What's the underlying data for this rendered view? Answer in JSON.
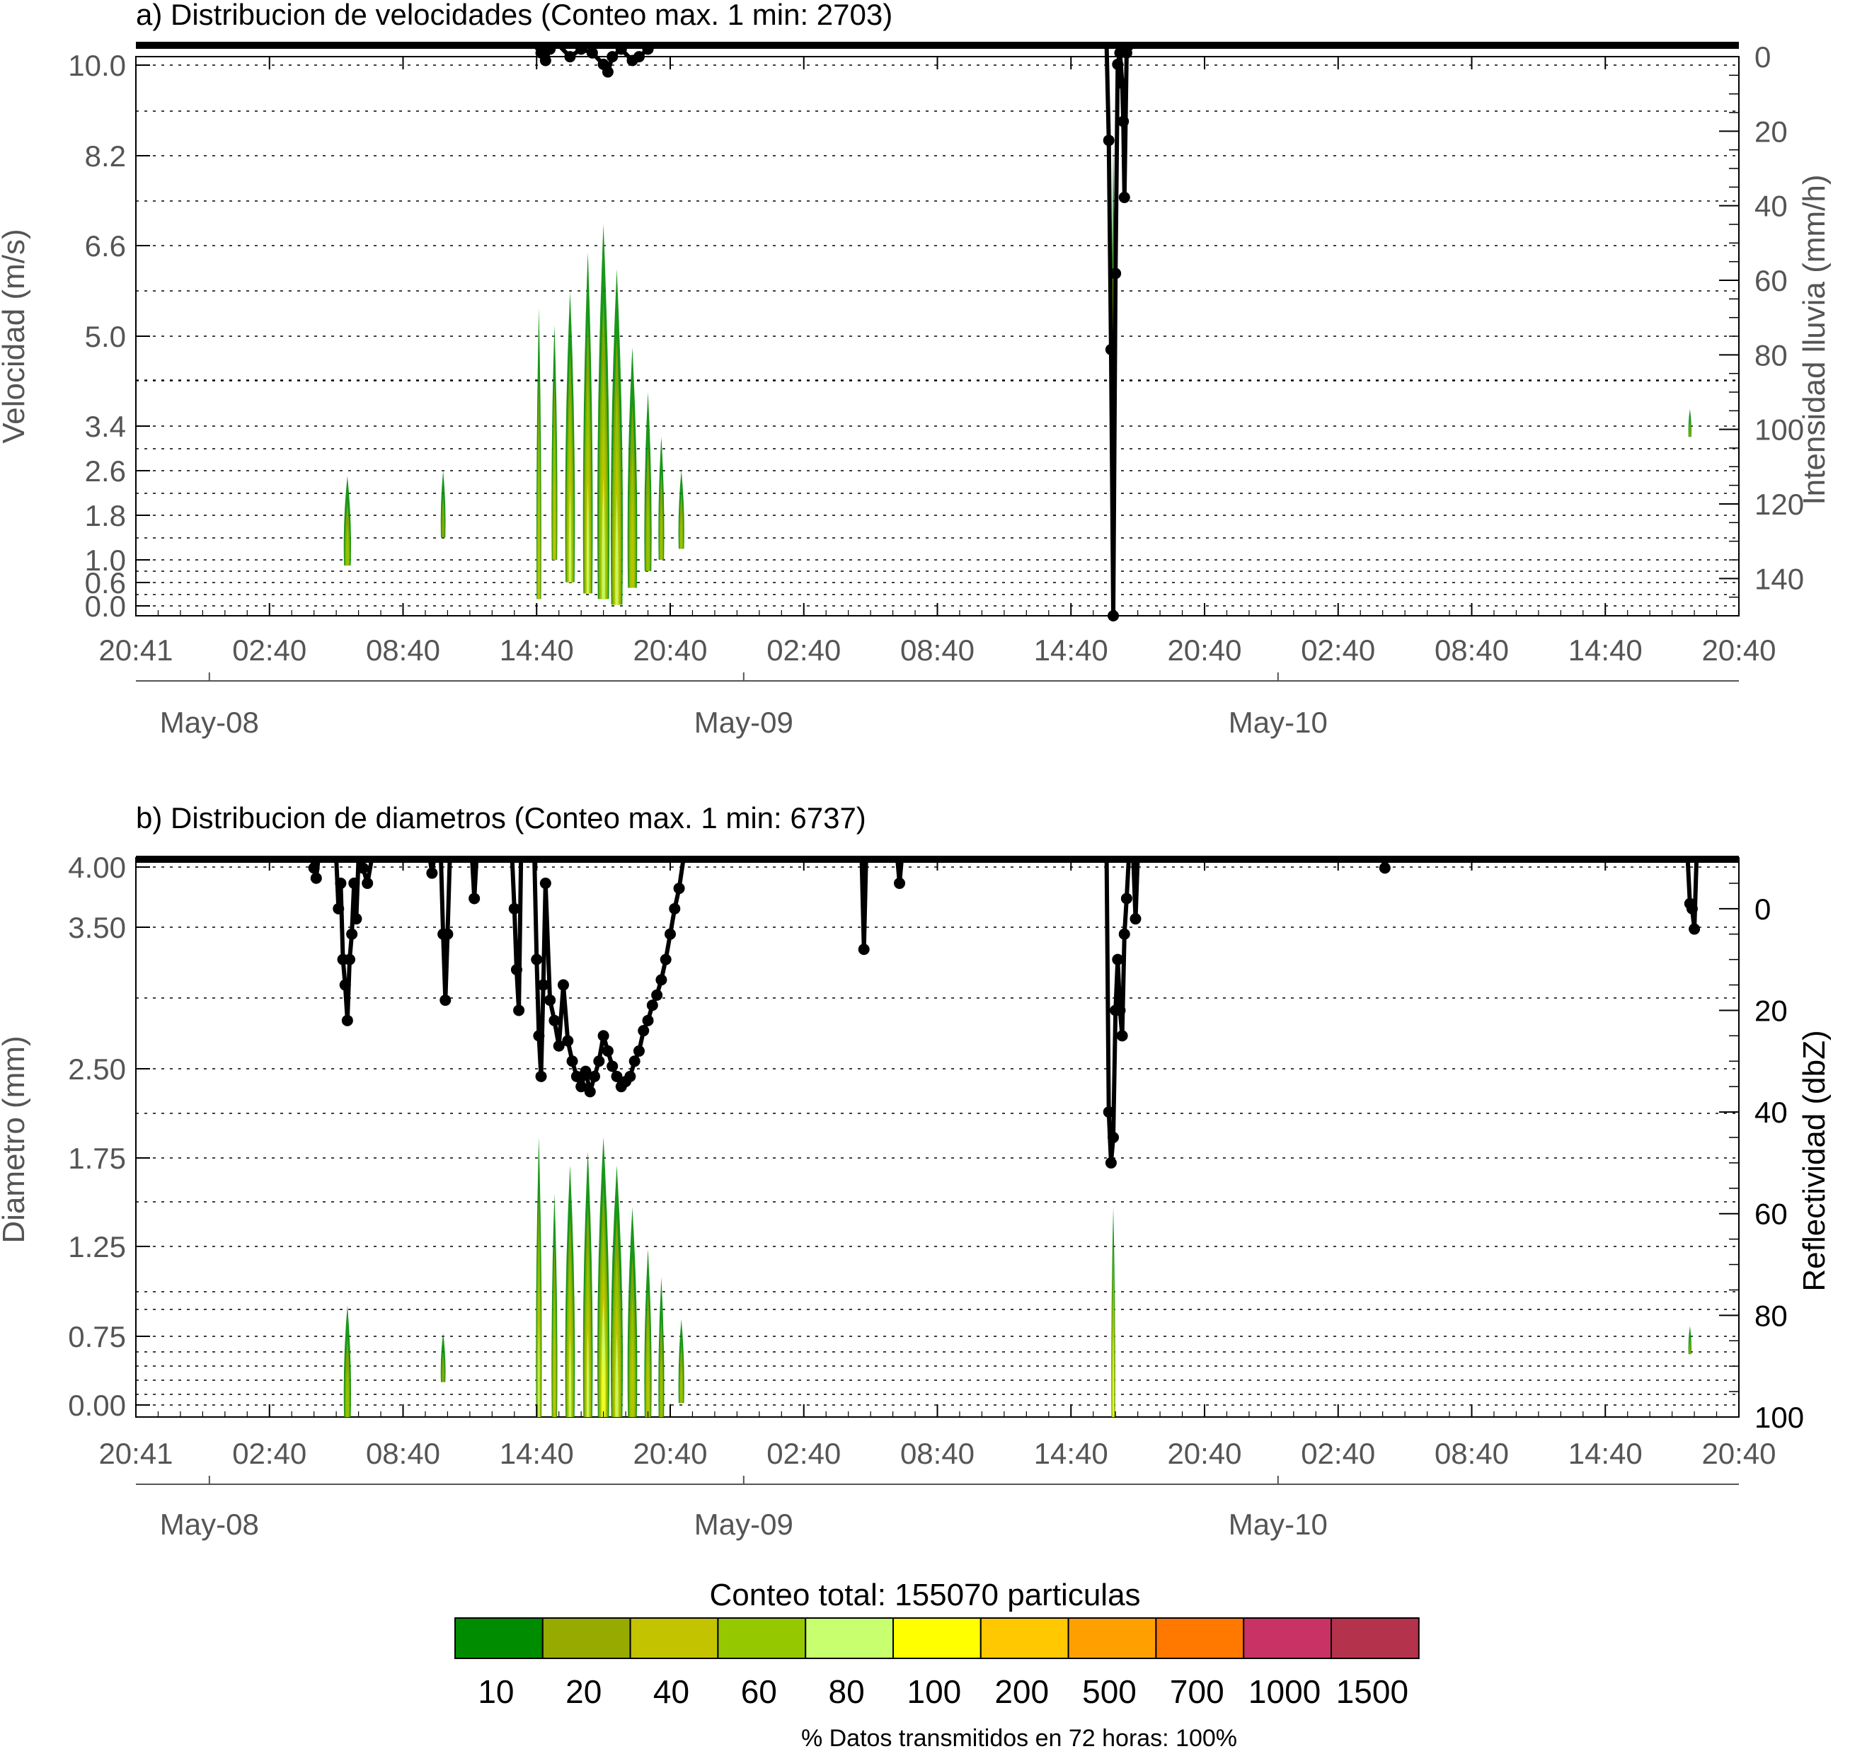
{
  "chart_data": [
    {
      "id": "a",
      "type": "heatmap",
      "title": "a) Distribucion de velocidades (Conteo max. 1 min: 2703)",
      "ylabel": "Velocidad (m/s)",
      "ylabel_right": "Intensidad lluvia (mm/h)",
      "y_tick_labels": [
        "10.0",
        "8.2",
        "6.6",
        "5.0",
        "3.4",
        "2.6",
        "1.8",
        "1.0",
        "0.6",
        "0.0"
      ],
      "y_tick_values": [
        10.0,
        8.2,
        6.6,
        5.0,
        3.4,
        2.6,
        1.8,
        1.0,
        0.6,
        0.0
      ],
      "y2_tick_labels": [
        "0",
        "20",
        "40",
        "60",
        "80",
        "100",
        "120",
        "140"
      ],
      "y2_range": [
        0,
        150
      ],
      "y2_inverted": true,
      "x_tick_labels": [
        "20:41",
        "02:40",
        "08:40",
        "14:40",
        "20:40",
        "02:40",
        "08:40",
        "14:40",
        "20:40",
        "02:40",
        "08:40",
        "14:40",
        "20:40"
      ],
      "x_range_hours": [
        0,
        72
      ],
      "day_labels": [
        "May-08",
        "May-09",
        "May-10"
      ],
      "grid": true,
      "rain_line_points": [
        [
          17.9,
          0
        ],
        [
          18.2,
          2
        ],
        [
          18.4,
          4
        ],
        [
          18.6,
          1
        ],
        [
          19.0,
          0
        ],
        [
          19.5,
          3
        ],
        [
          20.0,
          1
        ],
        [
          20.5,
          2
        ],
        [
          21.0,
          5
        ],
        [
          21.2,
          7
        ],
        [
          21.4,
          3
        ],
        [
          21.8,
          1
        ],
        [
          22.3,
          4
        ],
        [
          22.6,
          3
        ],
        [
          23.0,
          1
        ],
        [
          23.4,
          0
        ],
        [
          43.6,
          0
        ],
        [
          43.7,
          25
        ],
        [
          43.8,
          80
        ],
        [
          43.9,
          150
        ],
        [
          44.0,
          60
        ],
        [
          44.1,
          5
        ],
        [
          44.2,
          2
        ],
        [
          44.3,
          10
        ],
        [
          44.35,
          20
        ],
        [
          44.4,
          40
        ],
        [
          44.5,
          2
        ],
        [
          44.8,
          0
        ]
      ],
      "heat_patches": [
        {
          "x": 9.5,
          "half_width": 0.15,
          "y0": 0.9,
          "y1": 2.5,
          "weight": 0.3
        },
        {
          "x": 13.8,
          "half_width": 0.1,
          "y0": 1.4,
          "y1": 2.6,
          "weight": 0.2
        },
        {
          "x": 18.1,
          "half_width": 0.1,
          "y0": 0.3,
          "y1": 5.5,
          "weight": 0.6
        },
        {
          "x": 18.8,
          "half_width": 0.12,
          "y0": 1.0,
          "y1": 5.2,
          "weight": 0.5
        },
        {
          "x": 19.5,
          "half_width": 0.2,
          "y0": 0.6,
          "y1": 5.8,
          "weight": 0.7
        },
        {
          "x": 20.3,
          "half_width": 0.2,
          "y0": 0.4,
          "y1": 6.5,
          "weight": 0.7
        },
        {
          "x": 21.0,
          "half_width": 0.25,
          "y0": 0.3,
          "y1": 7.0,
          "weight": 0.8
        },
        {
          "x": 21.6,
          "half_width": 0.25,
          "y0": 0.2,
          "y1": 6.2,
          "weight": 0.8
        },
        {
          "x": 22.3,
          "half_width": 0.2,
          "y0": 0.5,
          "y1": 4.8,
          "weight": 0.5
        },
        {
          "x": 23.0,
          "half_width": 0.15,
          "y0": 0.8,
          "y1": 4.0,
          "weight": 0.4
        },
        {
          "x": 23.6,
          "half_width": 0.12,
          "y0": 1.0,
          "y1": 3.2,
          "weight": 0.3
        },
        {
          "x": 24.5,
          "half_width": 0.12,
          "y0": 1.2,
          "y1": 2.6,
          "weight": 0.3
        },
        {
          "x": 43.9,
          "half_width": 0.08,
          "y0": 0.0,
          "y1": 8.5,
          "weight": 0.9
        },
        {
          "x": 69.8,
          "half_width": 0.05,
          "y0": 3.2,
          "y1": 3.7,
          "weight": 0.2
        }
      ]
    },
    {
      "id": "b",
      "type": "heatmap",
      "title": "b) Distribucion de diametros (Conteo max. 1 min: 6737)",
      "ylabel": "Diametro (mm)",
      "ylabel_right": "Reflectividad (dbZ)",
      "y_tick_labels": [
        "4.00",
        "3.50",
        "2.50",
        "1.75",
        "1.25",
        "0.75",
        "0.00"
      ],
      "y_tick_values": [
        4.0,
        3.5,
        2.5,
        1.75,
        1.25,
        0.75,
        0.0
      ],
      "y2_tick_labels": [
        "0",
        "20",
        "40",
        "60",
        "80",
        "100"
      ],
      "y2_range": [
        -10,
        100
      ],
      "y2_inverted": true,
      "x_tick_labels": [
        "20:41",
        "02:40",
        "08:40",
        "14:40",
        "20:40",
        "02:40",
        "08:40",
        "14:40",
        "20:40",
        "02:40",
        "08:40",
        "14:40",
        "20:40"
      ],
      "x_range_hours": [
        0,
        72
      ],
      "day_labels": [
        "May-08",
        "May-09",
        "May-10"
      ],
      "grid": true,
      "reflectivity_line_points": [
        [
          7.9,
          -10
        ],
        [
          8.0,
          -8
        ],
        [
          8.1,
          -6
        ],
        [
          8.2,
          -10
        ],
        [
          9.0,
          -10
        ],
        [
          9.1,
          0
        ],
        [
          9.2,
          -5
        ],
        [
          9.3,
          10
        ],
        [
          9.4,
          15
        ],
        [
          9.5,
          22
        ],
        [
          9.6,
          10
        ],
        [
          9.7,
          5
        ],
        [
          9.8,
          -5
        ],
        [
          9.9,
          2
        ],
        [
          10.0,
          -10
        ],
        [
          10.2,
          -8
        ],
        [
          10.4,
          -5
        ],
        [
          10.6,
          -10
        ],
        [
          13.2,
          -10
        ],
        [
          13.3,
          -7
        ],
        [
          13.4,
          -10
        ],
        [
          13.7,
          -10
        ],
        [
          13.8,
          5
        ],
        [
          13.9,
          18
        ],
        [
          14.0,
          5
        ],
        [
          14.1,
          -10
        ],
        [
          15.1,
          -10
        ],
        [
          15.2,
          -2
        ],
        [
          15.3,
          -10
        ],
        [
          16.9,
          -10
        ],
        [
          17.0,
          0
        ],
        [
          17.1,
          12
        ],
        [
          17.2,
          20
        ],
        [
          17.3,
          -10
        ],
        [
          17.9,
          -10
        ],
        [
          18.0,
          10
        ],
        [
          18.1,
          25
        ],
        [
          18.2,
          33
        ],
        [
          18.3,
          15
        ],
        [
          18.4,
          -5
        ],
        [
          18.6,
          18
        ],
        [
          18.8,
          22
        ],
        [
          19.0,
          27
        ],
        [
          19.2,
          15
        ],
        [
          19.4,
          26
        ],
        [
          19.6,
          30
        ],
        [
          19.8,
          33
        ],
        [
          20.0,
          35
        ],
        [
          20.2,
          32
        ],
        [
          20.4,
          36
        ],
        [
          20.6,
          33
        ],
        [
          20.8,
          30
        ],
        [
          21.0,
          25
        ],
        [
          21.2,
          28
        ],
        [
          21.4,
          31
        ],
        [
          21.6,
          33
        ],
        [
          21.8,
          35
        ],
        [
          22.0,
          34
        ],
        [
          22.2,
          33
        ],
        [
          22.4,
          30
        ],
        [
          22.6,
          28
        ],
        [
          22.8,
          24
        ],
        [
          23.0,
          22
        ],
        [
          23.2,
          19
        ],
        [
          23.4,
          17
        ],
        [
          23.6,
          14
        ],
        [
          23.8,
          10
        ],
        [
          24.0,
          5
        ],
        [
          24.2,
          0
        ],
        [
          24.4,
          -4
        ],
        [
          24.6,
          -10
        ],
        [
          32.6,
          -10
        ],
        [
          32.7,
          8
        ],
        [
          32.8,
          -10
        ],
        [
          34.2,
          -10
        ],
        [
          34.3,
          -5
        ],
        [
          34.4,
          -10
        ],
        [
          43.6,
          -10
        ],
        [
          43.7,
          40
        ],
        [
          43.8,
          50
        ],
        [
          43.9,
          45
        ],
        [
          44.0,
          20
        ],
        [
          44.1,
          10
        ],
        [
          44.2,
          20
        ],
        [
          44.3,
          25
        ],
        [
          44.4,
          5
        ],
        [
          44.5,
          -2
        ],
        [
          44.6,
          -10
        ],
        [
          44.8,
          -10
        ],
        [
          44.9,
          2
        ],
        [
          45.0,
          -10
        ],
        [
          56.0,
          -10
        ],
        [
          56.1,
          -8
        ],
        [
          56.2,
          -10
        ],
        [
          69.7,
          -10
        ],
        [
          69.8,
          -1
        ],
        [
          69.9,
          0
        ],
        [
          70.0,
          4
        ],
        [
          70.1,
          -10
        ]
      ],
      "heat_patches": [
        {
          "x": 9.5,
          "half_width": 0.15,
          "y0": 0.0,
          "y1": 0.8,
          "weight": 0.4
        },
        {
          "x": 13.8,
          "half_width": 0.1,
          "y0": 0.25,
          "y1": 0.6,
          "weight": 0.2
        },
        {
          "x": 18.1,
          "half_width": 0.12,
          "y0": 0.0,
          "y1": 2.0,
          "weight": 0.7
        },
        {
          "x": 18.8,
          "half_width": 0.12,
          "y0": 0.0,
          "y1": 1.6,
          "weight": 0.5
        },
        {
          "x": 19.5,
          "half_width": 0.2,
          "y0": 0.0,
          "y1": 1.8,
          "weight": 0.7
        },
        {
          "x": 20.3,
          "half_width": 0.2,
          "y0": 0.0,
          "y1": 1.9,
          "weight": 0.8
        },
        {
          "x": 21.0,
          "half_width": 0.25,
          "y0": 0.0,
          "y1": 2.0,
          "weight": 0.9
        },
        {
          "x": 21.6,
          "half_width": 0.25,
          "y0": 0.0,
          "y1": 1.8,
          "weight": 0.8
        },
        {
          "x": 22.3,
          "half_width": 0.2,
          "y0": 0.0,
          "y1": 1.5,
          "weight": 0.6
        },
        {
          "x": 23.0,
          "half_width": 0.15,
          "y0": 0.0,
          "y1": 1.2,
          "weight": 0.5
        },
        {
          "x": 23.6,
          "half_width": 0.12,
          "y0": 0.0,
          "y1": 1.0,
          "weight": 0.4
        },
        {
          "x": 24.5,
          "half_width": 0.12,
          "y0": 0.1,
          "y1": 0.7,
          "weight": 0.3
        },
        {
          "x": 43.9,
          "half_width": 0.08,
          "y0": 0.0,
          "y1": 1.5,
          "weight": 1.0
        },
        {
          "x": 69.8,
          "half_width": 0.05,
          "y0": 0.45,
          "y1": 0.65,
          "weight": 0.2
        }
      ]
    }
  ],
  "colorbar": {
    "title": "Conteo total: 155070 particulas",
    "labels": [
      "10",
      "20",
      "40",
      "60",
      "80",
      "100",
      "200",
      "500",
      "700",
      "1000",
      "1500"
    ],
    "colors": [
      "#008c00",
      "#96aa00",
      "#c3c300",
      "#96c800",
      "#c8ff6e",
      "#ffff00",
      "#ffc800",
      "#ffa000",
      "#ff7800",
      "#c83264",
      "#b4324b"
    ]
  },
  "footer": "% Datos transmitidos en 72 horas: 100%"
}
